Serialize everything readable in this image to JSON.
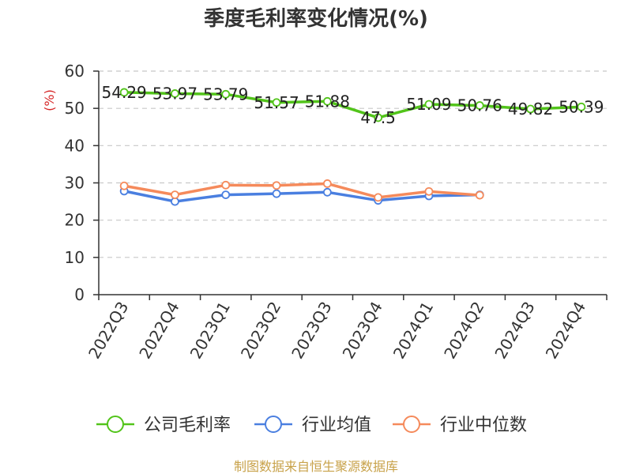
{
  "chart_data": {
    "type": "line",
    "title": "季度毛利率变化情况(%)",
    "ylabel": "(%)",
    "xlabel": "",
    "ylim": [
      0,
      60
    ],
    "yticks": [
      0,
      10,
      20,
      30,
      40,
      50,
      60
    ],
    "grid": true,
    "legend_position": "bottom",
    "categories": [
      "2022Q3",
      "2022Q4",
      "2023Q1",
      "2023Q2",
      "2023Q3",
      "2023Q4",
      "2024Q1",
      "2024Q2",
      "2024Q3",
      "2024Q4"
    ],
    "series": [
      {
        "name": "公司毛利率",
        "color": "#52c41a",
        "values": [
          54.29,
          53.97,
          53.79,
          51.57,
          51.88,
          47.5,
          51.09,
          50.76,
          49.82,
          50.39
        ],
        "labels": true
      },
      {
        "name": "行业均值",
        "color": "#4a7fe0",
        "values": [
          27.8,
          25.0,
          26.8,
          27.1,
          27.5,
          25.3,
          26.5,
          26.8,
          null,
          null
        ],
        "labels": false
      },
      {
        "name": "行业中位数",
        "color": "#f58a5b",
        "values": [
          29.2,
          26.8,
          29.4,
          29.3,
          29.8,
          26.1,
          27.7,
          26.7,
          null,
          null
        ],
        "labels": false
      }
    ]
  },
  "source_text": "制图数据来自恒生聚源数据库",
  "colors": {
    "source": "#c8a24a",
    "ylabel": "#d62728"
  }
}
